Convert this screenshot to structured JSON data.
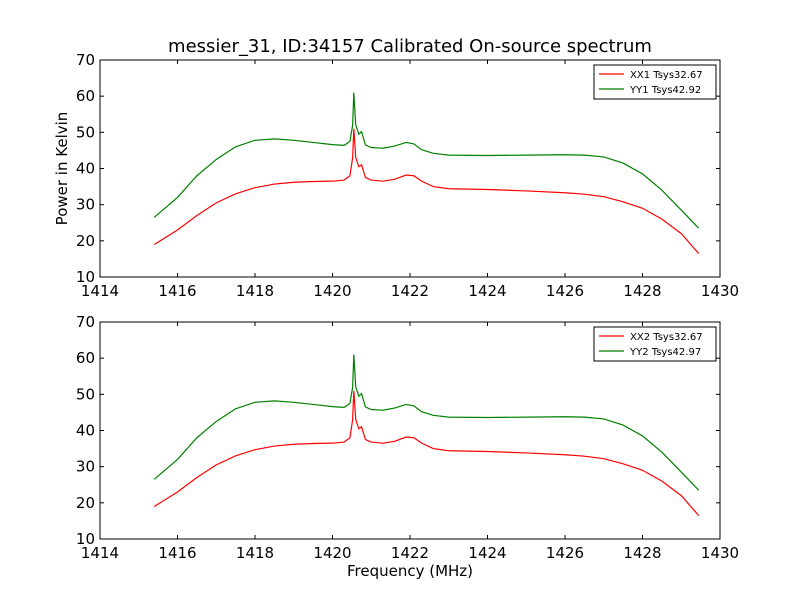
{
  "figure": {
    "title": "messier_31, ID:34157 Calibrated On-source spectrum"
  },
  "chart_data": [
    {
      "type": "line",
      "xlabel": "",
      "ylabel": "Power in Kelvin",
      "xlim": [
        1414,
        1430
      ],
      "ylim": [
        10,
        70
      ],
      "xticks": [
        1414,
        1416,
        1418,
        1420,
        1422,
        1424,
        1426,
        1428,
        1430
      ],
      "yticks": [
        10,
        20,
        30,
        40,
        50,
        60,
        70
      ],
      "grid": false,
      "legend_position": "top-right",
      "series": [
        {
          "name": "XX1 Tsys32.67",
          "color": "#ff0000",
          "points": [
            [
              1415.4,
              19.0
            ],
            [
              1416.0,
              23.0
            ],
            [
              1416.5,
              27.0
            ],
            [
              1417.0,
              30.5
            ],
            [
              1417.5,
              33.0
            ],
            [
              1418.0,
              34.7
            ],
            [
              1418.5,
              35.7
            ],
            [
              1419.0,
              36.2
            ],
            [
              1419.5,
              36.4
            ],
            [
              1420.0,
              36.5
            ],
            [
              1420.3,
              36.8
            ],
            [
              1420.45,
              38.0
            ],
            [
              1420.52,
              43.0
            ],
            [
              1420.55,
              51.0
            ],
            [
              1420.6,
              43.0
            ],
            [
              1420.68,
              40.5
            ],
            [
              1420.75,
              41.0
            ],
            [
              1420.85,
              37.5
            ],
            [
              1421.0,
              36.8
            ],
            [
              1421.3,
              36.5
            ],
            [
              1421.6,
              37.0
            ],
            [
              1421.9,
              38.2
            ],
            [
              1422.1,
              38.0
            ],
            [
              1422.3,
              36.5
            ],
            [
              1422.6,
              35.0
            ],
            [
              1423.0,
              34.4
            ],
            [
              1424.0,
              34.2
            ],
            [
              1425.0,
              33.8
            ],
            [
              1426.0,
              33.3
            ],
            [
              1426.5,
              32.9
            ],
            [
              1427.0,
              32.2
            ],
            [
              1427.5,
              30.8
            ],
            [
              1428.0,
              29.0
            ],
            [
              1428.5,
              26.0
            ],
            [
              1429.0,
              22.0
            ],
            [
              1429.45,
              16.5
            ]
          ]
        },
        {
          "name": "YY1 Tsys42.92",
          "color": "#008000",
          "points": [
            [
              1415.4,
              26.5
            ],
            [
              1416.0,
              32.0
            ],
            [
              1416.5,
              38.0
            ],
            [
              1417.0,
              42.5
            ],
            [
              1417.5,
              46.0
            ],
            [
              1418.0,
              47.8
            ],
            [
              1418.5,
              48.2
            ],
            [
              1419.0,
              47.8
            ],
            [
              1419.5,
              47.2
            ],
            [
              1420.0,
              46.6
            ],
            [
              1420.3,
              46.4
            ],
            [
              1420.45,
              47.5
            ],
            [
              1420.52,
              52.0
            ],
            [
              1420.55,
              61.0
            ],
            [
              1420.6,
              52.0
            ],
            [
              1420.68,
              49.5
            ],
            [
              1420.75,
              50.2
            ],
            [
              1420.85,
              46.5
            ],
            [
              1421.0,
              45.8
            ],
            [
              1421.3,
              45.6
            ],
            [
              1421.6,
              46.2
            ],
            [
              1421.9,
              47.2
            ],
            [
              1422.1,
              46.8
            ],
            [
              1422.3,
              45.2
            ],
            [
              1422.6,
              44.2
            ],
            [
              1423.0,
              43.7
            ],
            [
              1424.0,
              43.6
            ],
            [
              1425.0,
              43.7
            ],
            [
              1426.0,
              43.8
            ],
            [
              1426.5,
              43.7
            ],
            [
              1427.0,
              43.2
            ],
            [
              1427.5,
              41.5
            ],
            [
              1428.0,
              38.5
            ],
            [
              1428.5,
              34.0
            ],
            [
              1429.0,
              28.5
            ],
            [
              1429.45,
              23.5
            ]
          ]
        }
      ]
    },
    {
      "type": "line",
      "xlabel": "Frequency (MHz)",
      "ylabel": "",
      "xlim": [
        1414,
        1430
      ],
      "ylim": [
        10,
        70
      ],
      "xticks": [
        1414,
        1416,
        1418,
        1420,
        1422,
        1424,
        1426,
        1428,
        1430
      ],
      "yticks": [
        10,
        20,
        30,
        40,
        50,
        60,
        70
      ],
      "grid": false,
      "legend_position": "top-right",
      "series": [
        {
          "name": "XX2 Tsys32.67",
          "color": "#ff0000",
          "points": [
            [
              1415.4,
              19.0
            ],
            [
              1416.0,
              23.0
            ],
            [
              1416.5,
              27.0
            ],
            [
              1417.0,
              30.5
            ],
            [
              1417.5,
              33.0
            ],
            [
              1418.0,
              34.7
            ],
            [
              1418.5,
              35.7
            ],
            [
              1419.0,
              36.2
            ],
            [
              1419.5,
              36.4
            ],
            [
              1420.0,
              36.5
            ],
            [
              1420.3,
              36.8
            ],
            [
              1420.45,
              38.0
            ],
            [
              1420.52,
              43.0
            ],
            [
              1420.55,
              51.0
            ],
            [
              1420.6,
              43.0
            ],
            [
              1420.68,
              40.5
            ],
            [
              1420.75,
              41.0
            ],
            [
              1420.85,
              37.5
            ],
            [
              1421.0,
              36.8
            ],
            [
              1421.3,
              36.5
            ],
            [
              1421.6,
              37.0
            ],
            [
              1421.9,
              38.2
            ],
            [
              1422.1,
              38.0
            ],
            [
              1422.3,
              36.5
            ],
            [
              1422.6,
              35.0
            ],
            [
              1423.0,
              34.4
            ],
            [
              1424.0,
              34.2
            ],
            [
              1425.0,
              33.8
            ],
            [
              1426.0,
              33.3
            ],
            [
              1426.5,
              32.9
            ],
            [
              1427.0,
              32.2
            ],
            [
              1427.5,
              30.8
            ],
            [
              1428.0,
              29.0
            ],
            [
              1428.5,
              26.0
            ],
            [
              1429.0,
              22.0
            ],
            [
              1429.45,
              16.5
            ]
          ]
        },
        {
          "name": "YY2 Tsys42.97",
          "color": "#008000",
          "points": [
            [
              1415.4,
              26.5
            ],
            [
              1416.0,
              32.0
            ],
            [
              1416.5,
              38.0
            ],
            [
              1417.0,
              42.5
            ],
            [
              1417.5,
              46.0
            ],
            [
              1418.0,
              47.8
            ],
            [
              1418.5,
              48.2
            ],
            [
              1419.0,
              47.8
            ],
            [
              1419.5,
              47.2
            ],
            [
              1420.0,
              46.6
            ],
            [
              1420.3,
              46.4
            ],
            [
              1420.45,
              47.5
            ],
            [
              1420.52,
              52.0
            ],
            [
              1420.55,
              61.0
            ],
            [
              1420.6,
              52.0
            ],
            [
              1420.68,
              49.5
            ],
            [
              1420.75,
              50.2
            ],
            [
              1420.85,
              46.5
            ],
            [
              1421.0,
              45.8
            ],
            [
              1421.3,
              45.6
            ],
            [
              1421.6,
              46.2
            ],
            [
              1421.9,
              47.2
            ],
            [
              1422.1,
              46.8
            ],
            [
              1422.3,
              45.2
            ],
            [
              1422.6,
              44.2
            ],
            [
              1423.0,
              43.7
            ],
            [
              1424.0,
              43.6
            ],
            [
              1425.0,
              43.7
            ],
            [
              1426.0,
              43.8
            ],
            [
              1426.5,
              43.7
            ],
            [
              1427.0,
              43.2
            ],
            [
              1427.5,
              41.5
            ],
            [
              1428.0,
              38.5
            ],
            [
              1428.5,
              34.0
            ],
            [
              1429.0,
              28.5
            ],
            [
              1429.45,
              23.5
            ]
          ]
        }
      ]
    }
  ]
}
